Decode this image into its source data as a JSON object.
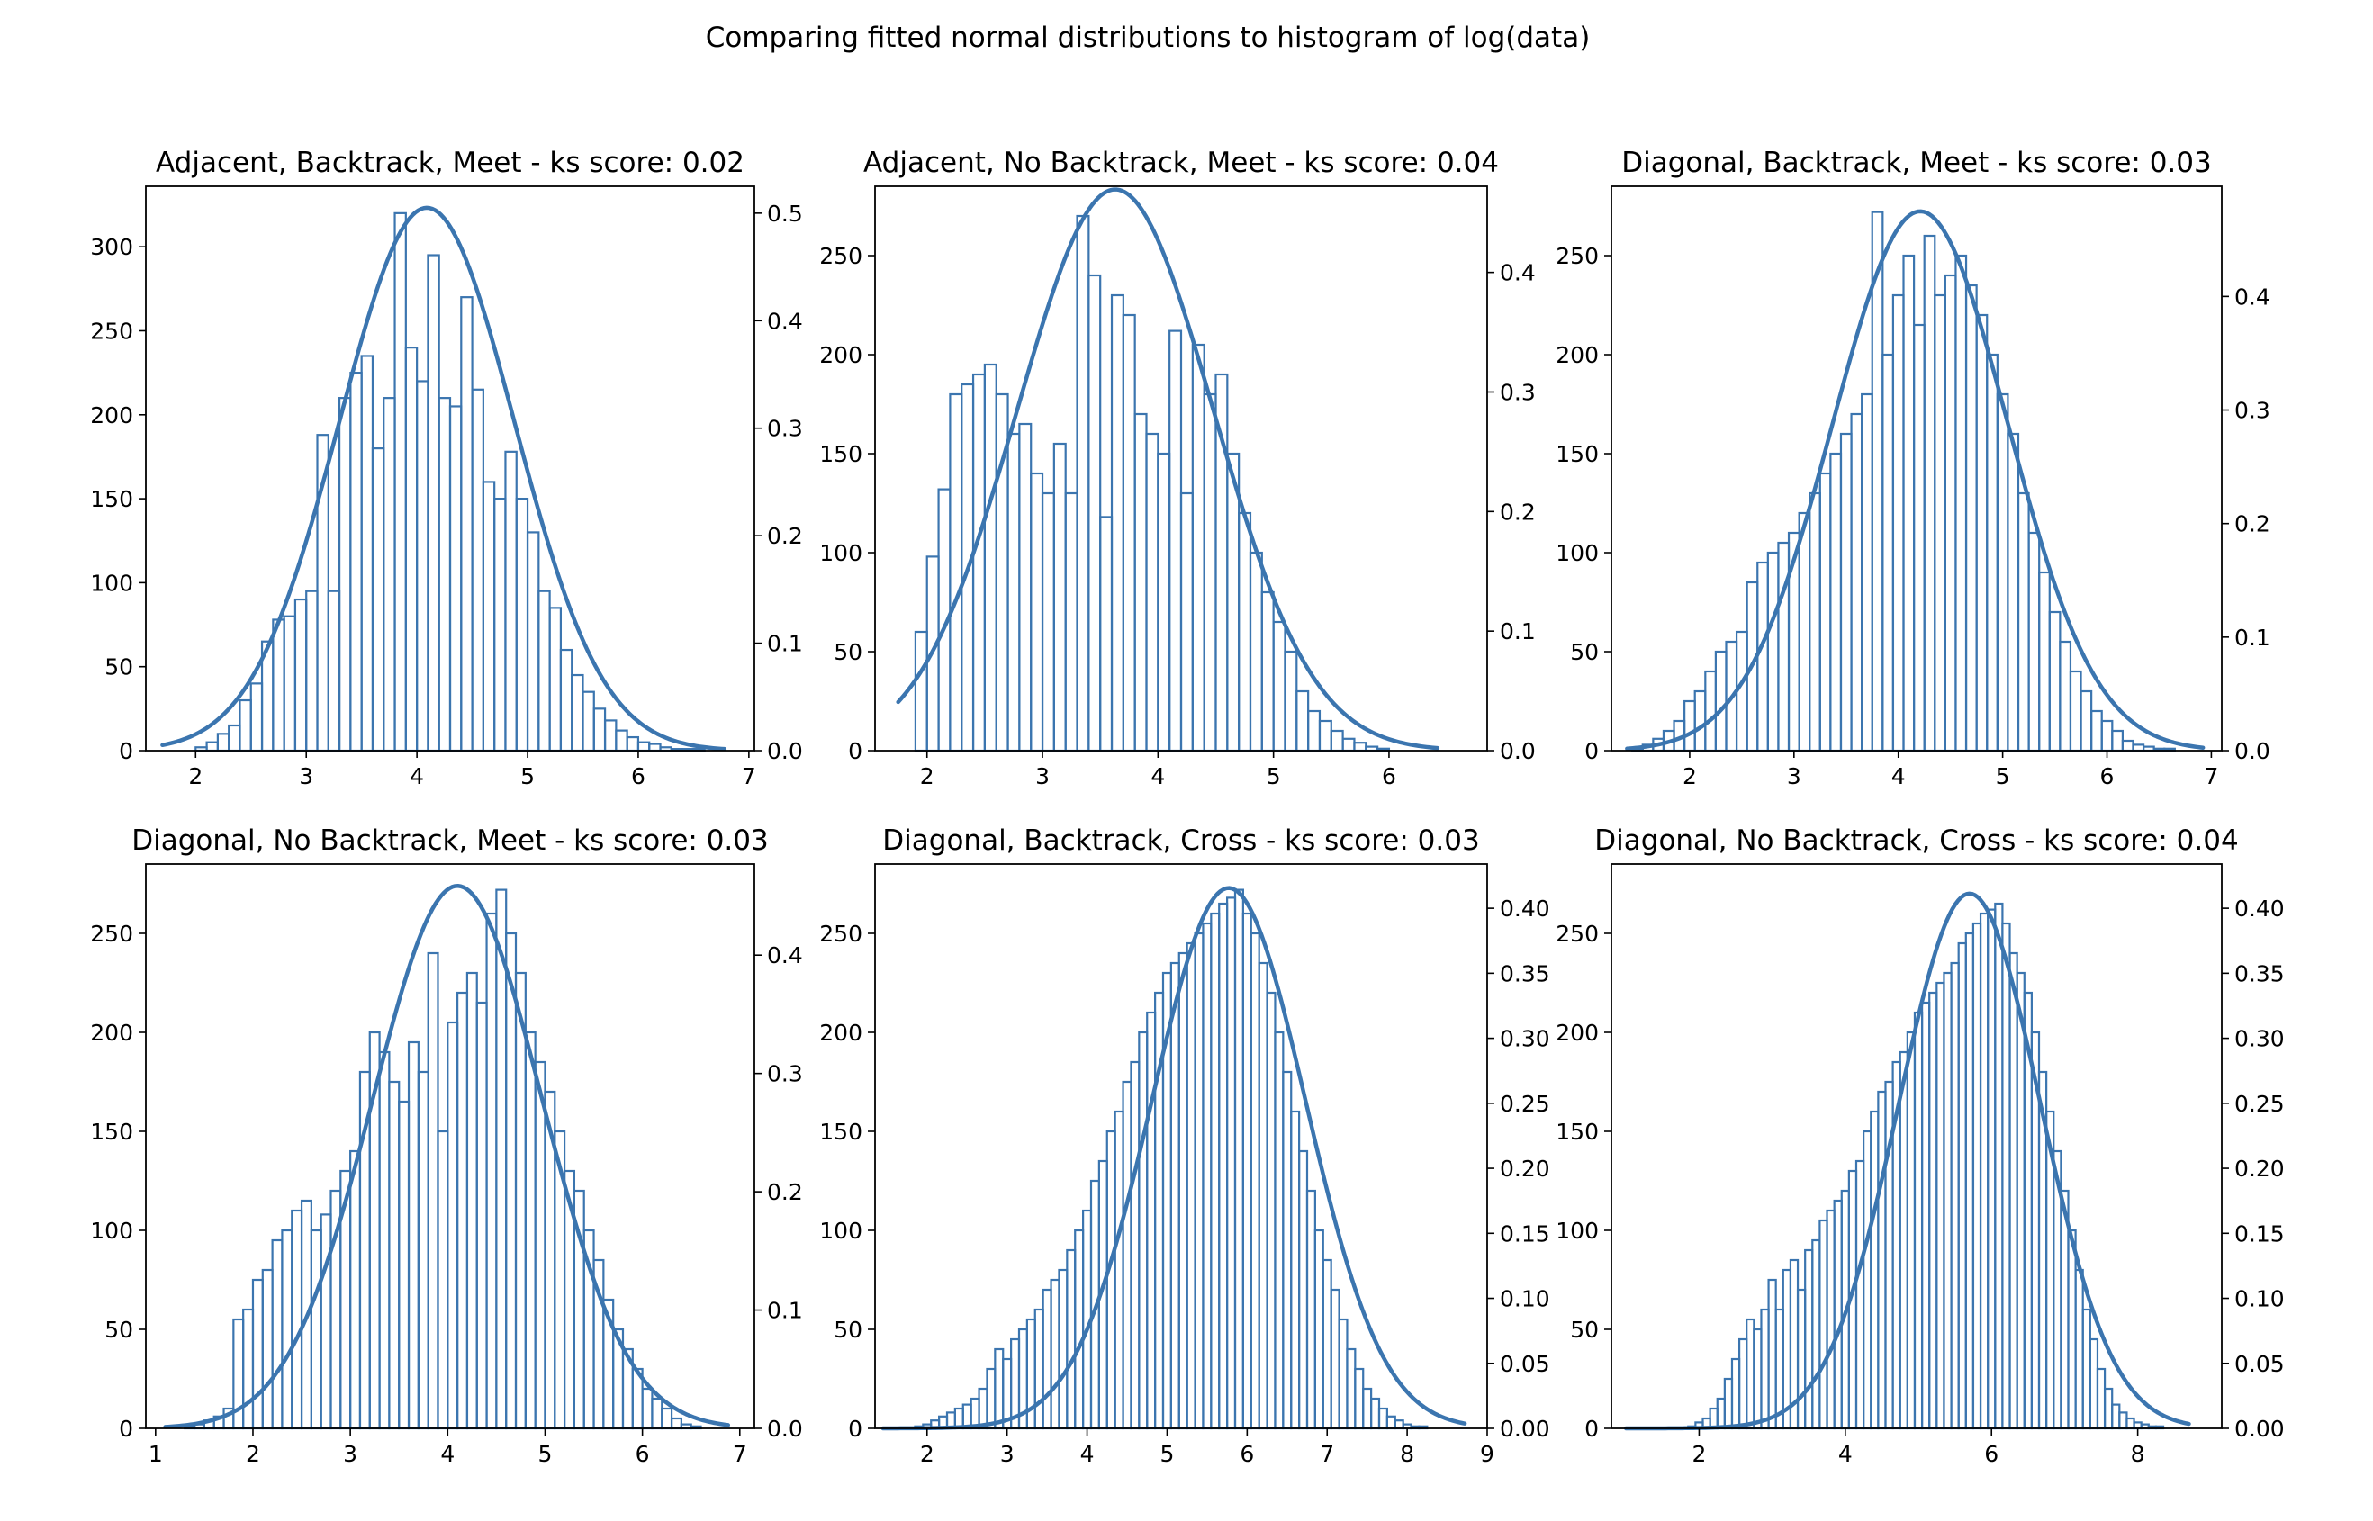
{
  "figure": {
    "suptitle": "Comparing fitted normal distributions to histogram of log(data)",
    "colors": {
      "series": "#3b75af",
      "axes": "#000000",
      "background": "#ffffff"
    }
  },
  "chart_data": [
    {
      "type": "histogram",
      "title": "Adjacent, Backtrack, Meet - ks score: 0.02",
      "xlim": [
        1.55,
        7.05
      ],
      "xticks": [
        2,
        3,
        4,
        5,
        6,
        7
      ],
      "ylim": [
        0,
        336
      ],
      "yticks": [
        0,
        50,
        100,
        150,
        200,
        250,
        300
      ],
      "y2lim": [
        0,
        0.525
      ],
      "y2ticks": [
        0.0,
        0.1,
        0.2,
        0.3,
        0.4,
        0.5
      ],
      "y2tick_labels": [
        "0.0",
        "0.1",
        "0.2",
        "0.3",
        "0.4",
        "0.5"
      ],
      "fit": {
        "mu": 4.09,
        "sigma": 0.79,
        "x_range": [
          1.7,
          6.78
        ]
      },
      "grid": false,
      "legend": "none",
      "hist_x": [
        1.75,
        1.85,
        1.95,
        2.05,
        2.15,
        2.25,
        2.35,
        2.45,
        2.55,
        2.65,
        2.75,
        2.85,
        2.95,
        3.05,
        3.15,
        3.25,
        3.35,
        3.45,
        3.55,
        3.65,
        3.75,
        3.85,
        3.95,
        4.05,
        4.15,
        4.25,
        4.35,
        4.45,
        4.55,
        4.65,
        4.75,
        4.85,
        4.95,
        5.05,
        5.15,
        5.25,
        5.35,
        5.45,
        5.55,
        5.65,
        5.75,
        5.85,
        5.95,
        6.05,
        6.15,
        6.25,
        6.35,
        6.45,
        6.55,
        6.65
      ],
      "hist_y": [
        0,
        0,
        0,
        2,
        5,
        10,
        15,
        30,
        40,
        65,
        78,
        80,
        90,
        95,
        188,
        95,
        210,
        225,
        235,
        180,
        210,
        320,
        240,
        220,
        295,
        210,
        205,
        270,
        215,
        160,
        150,
        178,
        150,
        130,
        95,
        85,
        60,
        45,
        35,
        25,
        18,
        12,
        8,
        5,
        4,
        2,
        1,
        1,
        1,
        0
      ]
    },
    {
      "type": "histogram",
      "title": "Adjacent, No Backtrack, Meet - ks score: 0.04",
      "xlim": [
        1.55,
        6.85
      ],
      "xticks": [
        2,
        3,
        4,
        5,
        6
      ],
      "ylim": [
        0,
        285
      ],
      "yticks": [
        0,
        50,
        100,
        150,
        200,
        250
      ],
      "y2lim": [
        0,
        0.472
      ],
      "y2ticks": [
        0.0,
        0.1,
        0.2,
        0.3,
        0.4
      ],
      "y2tick_labels": [
        "0.0",
        "0.1",
        "0.2",
        "0.3",
        "0.4"
      ],
      "fit": {
        "mu": 3.63,
        "sigma": 0.85,
        "x_range": [
          1.75,
          6.42
        ]
      },
      "grid": false,
      "legend": "none",
      "hist_x": [
        1.95,
        2.05,
        2.15,
        2.25,
        2.35,
        2.45,
        2.55,
        2.65,
        2.75,
        2.85,
        2.95,
        3.05,
        3.15,
        3.25,
        3.35,
        3.45,
        3.55,
        3.65,
        3.75,
        3.85,
        3.95,
        4.05,
        4.15,
        4.25,
        4.35,
        4.45,
        4.55,
        4.65,
        4.75,
        4.85,
        4.95,
        5.05,
        5.15,
        5.25,
        5.35,
        5.45,
        5.55,
        5.65,
        5.75,
        5.85,
        5.95,
        6.05
      ],
      "hist_y": [
        60,
        98,
        132,
        180,
        185,
        190,
        195,
        180,
        160,
        165,
        140,
        130,
        155,
        130,
        270,
        240,
        118,
        230,
        220,
        170,
        160,
        150,
        212,
        130,
        205,
        180,
        190,
        150,
        120,
        100,
        80,
        65,
        50,
        30,
        20,
        15,
        10,
        6,
        4,
        2,
        1,
        0
      ]
    },
    {
      "type": "histogram",
      "title": "Diagonal, Backtrack, Meet - ks score: 0.03",
      "xlim": [
        1.25,
        7.1
      ],
      "xticks": [
        2,
        3,
        4,
        5,
        6,
        7
      ],
      "ylim": [
        0,
        285
      ],
      "yticks": [
        0,
        50,
        100,
        150,
        200,
        250
      ],
      "y2lim": [
        0,
        0.497
      ],
      "y2ticks": [
        0.0,
        0.1,
        0.2,
        0.3,
        0.4
      ],
      "y2tick_labels": [
        "0.0",
        "0.1",
        "0.2",
        "0.3",
        "0.4"
      ],
      "fit": {
        "mu": 4.21,
        "sigma": 0.84,
        "x_range": [
          1.4,
          6.92
        ]
      },
      "grid": false,
      "legend": "none",
      "hist_x": [
        1.5,
        1.6,
        1.7,
        1.8,
        1.9,
        2.0,
        2.1,
        2.2,
        2.3,
        2.4,
        2.5,
        2.6,
        2.7,
        2.8,
        2.9,
        3.0,
        3.1,
        3.2,
        3.3,
        3.4,
        3.5,
        3.6,
        3.7,
        3.8,
        3.9,
        4.0,
        4.1,
        4.2,
        4.3,
        4.4,
        4.5,
        4.6,
        4.7,
        4.8,
        4.9,
        5.0,
        5.1,
        5.2,
        5.3,
        5.4,
        5.5,
        5.6,
        5.7,
        5.8,
        5.9,
        6.0,
        6.1,
        6.2,
        6.3,
        6.4,
        6.5,
        6.6
      ],
      "hist_y": [
        1,
        3,
        6,
        10,
        15,
        25,
        30,
        40,
        50,
        55,
        60,
        85,
        95,
        100,
        105,
        110,
        120,
        130,
        140,
        150,
        160,
        170,
        180,
        272,
        200,
        230,
        250,
        215,
        260,
        230,
        240,
        250,
        235,
        220,
        200,
        180,
        160,
        130,
        110,
        90,
        70,
        55,
        40,
        30,
        20,
        15,
        10,
        5,
        3,
        2,
        1,
        1
      ]
    },
    {
      "type": "histogram",
      "title": "Diagonal, No Backtrack, Meet - ks score: 0.03",
      "xlim": [
        0.9,
        7.15
      ],
      "xticks": [
        1,
        2,
        3,
        4,
        5,
        6,
        7
      ],
      "ylim": [
        0,
        285
      ],
      "yticks": [
        0,
        50,
        100,
        150,
        200,
        250
      ],
      "y2lim": [
        0,
        0.477
      ],
      "y2ticks": [
        0.0,
        0.1,
        0.2,
        0.3,
        0.4
      ],
      "y2tick_labels": [
        "0.0",
        "0.1",
        "0.2",
        "0.3",
        "0.4"
      ],
      "fit": {
        "mu": 4.1,
        "sigma": 0.87,
        "x_range": [
          1.1,
          6.88
        ]
      },
      "grid": false,
      "legend": "none",
      "hist_x": [
        1.35,
        1.45,
        1.55,
        1.65,
        1.75,
        1.85,
        1.95,
        2.05,
        2.15,
        2.25,
        2.35,
        2.45,
        2.55,
        2.65,
        2.75,
        2.85,
        2.95,
        3.05,
        3.15,
        3.25,
        3.35,
        3.45,
        3.55,
        3.65,
        3.75,
        3.85,
        3.95,
        4.05,
        4.15,
        4.25,
        4.35,
        4.45,
        4.55,
        4.65,
        4.75,
        4.85,
        4.95,
        5.05,
        5.15,
        5.25,
        5.35,
        5.45,
        5.55,
        5.65,
        5.75,
        5.85,
        5.95,
        6.05,
        6.15,
        6.25,
        6.35,
        6.45,
        6.55
      ],
      "hist_y": [
        1,
        2,
        4,
        6,
        10,
        55,
        60,
        75,
        80,
        95,
        100,
        110,
        115,
        100,
        108,
        120,
        130,
        140,
        180,
        200,
        190,
        175,
        165,
        195,
        180,
        240,
        150,
        205,
        220,
        230,
        215,
        260,
        272,
        250,
        230,
        200,
        185,
        170,
        150,
        130,
        120,
        100,
        85,
        65,
        50,
        40,
        30,
        20,
        15,
        10,
        5,
        2,
        1
      ]
    },
    {
      "type": "histogram",
      "title": "Diagonal, Backtrack, Cross - ks score: 0.03",
      "xlim": [
        1.35,
        9.0
      ],
      "xticks": [
        2,
        3,
        4,
        5,
        6,
        7,
        8,
        9
      ],
      "ylim": [
        0,
        285
      ],
      "yticks": [
        0,
        50,
        100,
        150,
        200,
        250
      ],
      "y2lim": [
        0,
        0.434
      ],
      "y2ticks": [
        0.0,
        0.05,
        0.1,
        0.15,
        0.2,
        0.25,
        0.3,
        0.35,
        0.4
      ],
      "y2tick_labels": [
        "0.00",
        "0.05",
        "0.10",
        "0.15",
        "0.20",
        "0.25",
        "0.30",
        "0.35",
        "0.40"
      ],
      "fit": {
        "mu": 5.77,
        "sigma": 0.96,
        "x_range": [
          1.45,
          8.72
        ]
      },
      "grid": false,
      "legend": "none",
      "hist_x": [
        1.9,
        2.0,
        2.1,
        2.2,
        2.3,
        2.4,
        2.5,
        2.6,
        2.7,
        2.8,
        2.9,
        3.0,
        3.1,
        3.2,
        3.3,
        3.4,
        3.5,
        3.6,
        3.7,
        3.8,
        3.9,
        4.0,
        4.1,
        4.2,
        4.3,
        4.4,
        4.5,
        4.6,
        4.7,
        4.8,
        4.9,
        5.0,
        5.1,
        5.2,
        5.3,
        5.4,
        5.5,
        5.6,
        5.7,
        5.8,
        5.9,
        6.0,
        6.1,
        6.2,
        6.3,
        6.4,
        6.5,
        6.6,
        6.7,
        6.8,
        6.9,
        7.0,
        7.1,
        7.2,
        7.3,
        7.4,
        7.5,
        7.6,
        7.7,
        7.8,
        7.9,
        8.0,
        8.1,
        8.2,
        8.3
      ],
      "hist_y": [
        1,
        2,
        4,
        6,
        8,
        10,
        12,
        15,
        20,
        30,
        40,
        35,
        45,
        50,
        55,
        60,
        70,
        75,
        80,
        90,
        100,
        110,
        125,
        135,
        150,
        160,
        175,
        185,
        200,
        210,
        220,
        230,
        235,
        240,
        245,
        250,
        255,
        260,
        265,
        268,
        272,
        260,
        250,
        235,
        220,
        200,
        180,
        160,
        140,
        120,
        100,
        85,
        70,
        55,
        40,
        30,
        20,
        15,
        10,
        6,
        4,
        2,
        1,
        1,
        0
      ]
    },
    {
      "type": "histogram",
      "title": "Diagonal, No Backtrack, Cross - ks score: 0.04",
      "xlim": [
        0.8,
        9.15
      ],
      "xticks": [
        2,
        4,
        6,
        8
      ],
      "ylim": [
        0,
        285
      ],
      "yticks": [
        0,
        50,
        100,
        150,
        200,
        250
      ],
      "y2lim": [
        0,
        0.434
      ],
      "y2ticks": [
        0.0,
        0.05,
        0.1,
        0.15,
        0.2,
        0.25,
        0.3,
        0.35,
        0.4
      ],
      "y2tick_labels": [
        "0.00",
        "0.05",
        "0.10",
        "0.15",
        "0.20",
        "0.25",
        "0.30",
        "0.35",
        "0.40"
      ],
      "fit": {
        "mu": 5.7,
        "sigma": 0.97,
        "x_range": [
          1.0,
          8.7
        ]
      },
      "grid": false,
      "legend": "none",
      "hist_x": [
        1.9,
        2.0,
        2.1,
        2.2,
        2.3,
        2.4,
        2.5,
        2.6,
        2.7,
        2.8,
        2.9,
        3.0,
        3.1,
        3.2,
        3.3,
        3.4,
        3.5,
        3.6,
        3.7,
        3.8,
        3.9,
        4.0,
        4.1,
        4.2,
        4.3,
        4.4,
        4.5,
        4.6,
        4.7,
        4.8,
        4.9,
        5.0,
        5.1,
        5.2,
        5.3,
        5.4,
        5.5,
        5.6,
        5.7,
        5.8,
        5.9,
        6.0,
        6.1,
        6.2,
        6.3,
        6.4,
        6.5,
        6.6,
        6.7,
        6.8,
        6.9,
        7.0,
        7.1,
        7.2,
        7.3,
        7.4,
        7.5,
        7.6,
        7.7,
        7.8,
        7.9,
        8.0,
        8.1,
        8.2,
        8.3
      ],
      "hist_y": [
        1,
        3,
        5,
        10,
        15,
        25,
        35,
        45,
        55,
        50,
        60,
        75,
        60,
        80,
        85,
        70,
        90,
        95,
        105,
        110,
        115,
        120,
        130,
        135,
        150,
        160,
        170,
        175,
        185,
        190,
        200,
        210,
        215,
        220,
        225,
        230,
        235,
        245,
        250,
        255,
        260,
        262,
        265,
        255,
        240,
        230,
        220,
        200,
        180,
        160,
        140,
        120,
        100,
        80,
        60,
        45,
        30,
        20,
        12,
        8,
        5,
        3,
        2,
        1,
        1
      ]
    }
  ]
}
